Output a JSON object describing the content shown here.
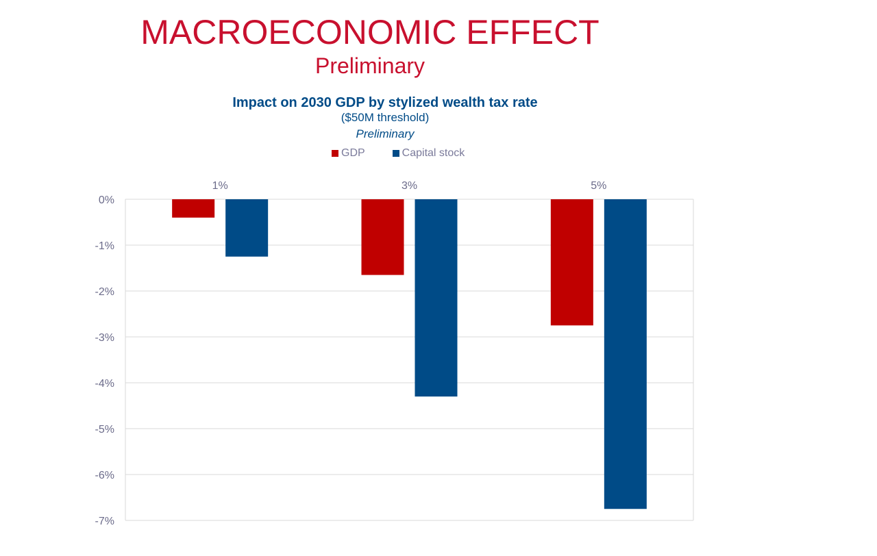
{
  "slide": {
    "title": "MACROECONOMIC EFFECT",
    "subtitle": "Preliminary"
  },
  "chart_data": {
    "type": "bar",
    "title": "Impact on 2030 GDP by stylized wealth tax rate",
    "subtitle": "($50M threshold)",
    "note": "Preliminary",
    "categories": [
      "1%",
      "3%",
      "5%"
    ],
    "series": [
      {
        "name": "GDP",
        "color": "#c00000",
        "values": [
          -0.4,
          -1.65,
          -2.75
        ]
      },
      {
        "name": "Capital stock",
        "color": "#004b87",
        "values": [
          -1.25,
          -4.3,
          -6.75
        ]
      }
    ],
    "ylim": [
      -7,
      0
    ],
    "yticks": [
      0,
      -1,
      -2,
      -3,
      -4,
      -5,
      -6,
      -7
    ],
    "ytick_labels": [
      "0%",
      "-1%",
      "-2%",
      "-3%",
      "-4%",
      "-5%",
      "-6%",
      "-7%"
    ],
    "xlabel": "",
    "ylabel": "",
    "grid": true,
    "legend_position": "top"
  }
}
